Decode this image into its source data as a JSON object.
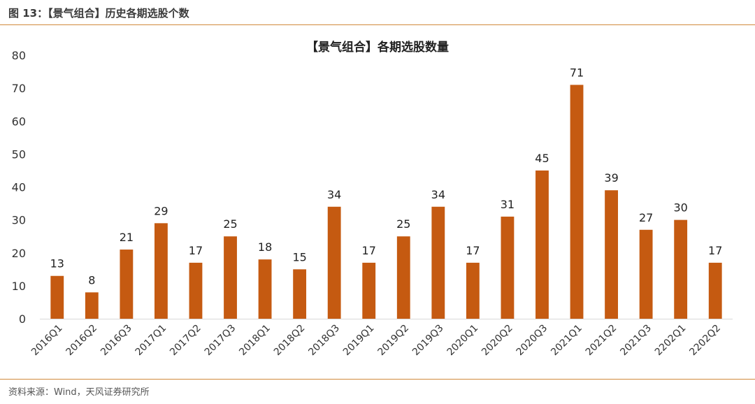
{
  "caption": "图 13：【景气组合】历史各期选股个数",
  "source": "资料来源：Wind，天风证券研究所",
  "chart_data": {
    "type": "bar",
    "title": "【景气组合】各期选股数量",
    "categories": [
      "2016Q1",
      "2016Q2",
      "2016Q3",
      "2017Q1",
      "2017Q2",
      "2017Q3",
      "2018Q1",
      "2018Q2",
      "2018Q3",
      "2019Q1",
      "2019Q2",
      "2019Q3",
      "2020Q1",
      "2020Q2",
      "2020Q3",
      "2021Q1",
      "2021Q2",
      "2021Q3",
      "2202Q1",
      "2202Q2"
    ],
    "values": [
      13,
      8,
      21,
      29,
      17,
      25,
      18,
      15,
      34,
      17,
      25,
      34,
      17,
      31,
      45,
      71,
      39,
      27,
      30,
      17
    ],
    "ylim": [
      0,
      80
    ],
    "yticks": [
      0,
      10,
      20,
      30,
      40,
      50,
      60,
      70,
      80
    ],
    "grid": false,
    "colors": {
      "bar": "#C55A11",
      "rule": "#d08a3c",
      "axis": "#d9d9d9"
    }
  }
}
